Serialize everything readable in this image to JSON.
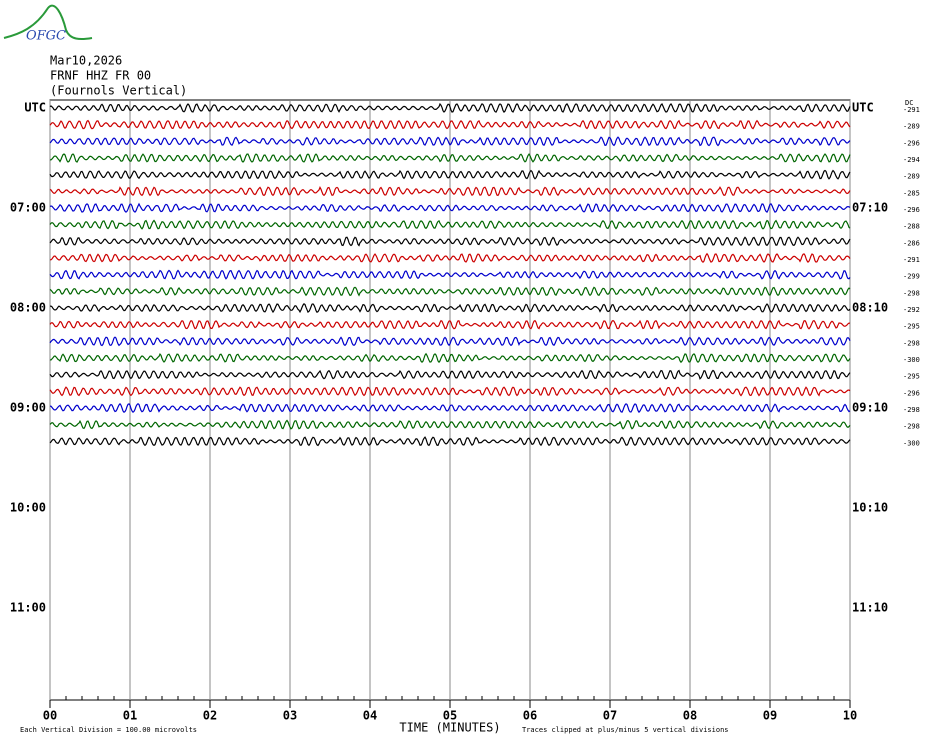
{
  "chart_data": {
    "type": "helicorder",
    "logo": "OFGC",
    "date": "Mar10,2026",
    "station": "FRNF HHZ FR 00",
    "location": "(Fournols Vertical)",
    "left_labels": [
      "UTC",
      "07:00",
      "08:00",
      "09:00",
      "10:00",
      "11:00"
    ],
    "right_labels": [
      "UTC",
      "07:10",
      "08:10",
      "09:10",
      "10:10",
      "11:10"
    ],
    "dc_title": "DC",
    "dc": [
      -291,
      -289,
      -296,
      -294,
      -289,
      -285,
      -296,
      -288,
      -286,
      -291,
      -299,
      -298,
      -292,
      -295,
      -298,
      -300,
      -295,
      -296,
      -298,
      -298,
      -300
    ],
    "colors": [
      "#000000",
      "#cc0000",
      "#0000cc",
      "#006600"
    ],
    "xlim": [
      0,
      10
    ],
    "xticks": [
      {
        "value": 0,
        "label": "00"
      },
      {
        "value": 1,
        "label": "01"
      },
      {
        "value": 2,
        "label": "02"
      },
      {
        "value": 3,
        "label": "03"
      },
      {
        "value": 4,
        "label": "04"
      },
      {
        "value": 5,
        "label": "05"
      },
      {
        "value": 6,
        "label": "06"
      },
      {
        "value": 7,
        "label": "07"
      },
      {
        "value": 8,
        "label": "08"
      },
      {
        "value": 9,
        "label": "09"
      },
      {
        "value": 10,
        "label": "10"
      }
    ],
    "xlabel": "TIME (MINUTES)",
    "scale_note": "Each Vertical Division =  100.00 microvolts",
    "clip_note": "Traces clipped at plus/minus 5 vertical divisions",
    "grid": true
  }
}
